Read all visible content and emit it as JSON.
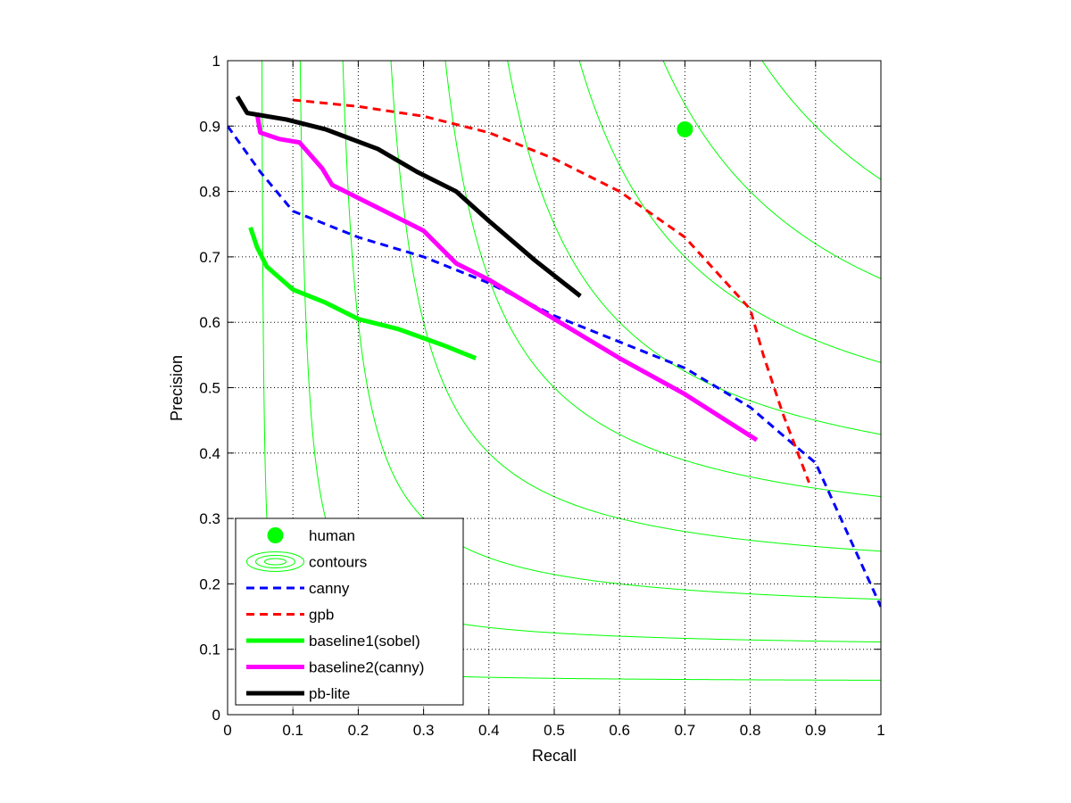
{
  "chart_data": {
    "type": "line",
    "title": "",
    "xlabel": "Recall",
    "ylabel": "Precision",
    "xlim": [
      0,
      1
    ],
    "ylim": [
      0,
      1
    ],
    "x_ticks": [
      "0",
      "0.1",
      "0.2",
      "0.3",
      "0.4",
      "0.5",
      "0.6",
      "0.7",
      "0.8",
      "0.9",
      "1"
    ],
    "y_ticks": [
      "0",
      "0.1",
      "0.2",
      "0.3",
      "0.4",
      "0.5",
      "0.6",
      "0.7",
      "0.8",
      "0.9",
      "1"
    ],
    "grid": "dotted",
    "legend_position": "bottom-left",
    "contours": {
      "label": "contours",
      "color": "#00ff00",
      "f_levels": [
        0.1,
        0.2,
        0.3,
        0.4,
        0.5,
        0.6,
        0.7,
        0.8,
        0.9
      ]
    },
    "points": [
      {
        "name": "human",
        "x": 0.7,
        "y": 0.895,
        "color": "#00ff00"
      }
    ],
    "series": [
      {
        "name": "canny",
        "color": "#0000ff",
        "style": "dashed",
        "width": "thin",
        "x": [
          0.0,
          0.05,
          0.1,
          0.2,
          0.3,
          0.4,
          0.5,
          0.6,
          0.7,
          0.8,
          0.87,
          0.9,
          1.0
        ],
        "y": [
          0.9,
          0.83,
          0.77,
          0.73,
          0.7,
          0.66,
          0.61,
          0.57,
          0.53,
          0.47,
          0.41,
          0.385,
          0.165
        ]
      },
      {
        "name": "gpb",
        "color": "#ff0000",
        "style": "dashed",
        "width": "thin",
        "x": [
          0.1,
          0.2,
          0.3,
          0.4,
          0.5,
          0.6,
          0.7,
          0.8,
          0.82,
          0.85,
          0.89
        ],
        "y": [
          0.94,
          0.93,
          0.915,
          0.89,
          0.85,
          0.8,
          0.73,
          0.62,
          0.55,
          0.46,
          0.355
        ]
      },
      {
        "name": "baseline1(sobel)",
        "color": "#00ff00",
        "style": "solid",
        "width": "thick",
        "x": [
          0.035,
          0.045,
          0.06,
          0.1,
          0.15,
          0.2,
          0.26,
          0.33,
          0.38
        ],
        "y": [
          0.745,
          0.715,
          0.685,
          0.65,
          0.63,
          0.605,
          0.59,
          0.565,
          0.545
        ]
      },
      {
        "name": "baseline2(canny)",
        "color": "#ff00ff",
        "style": "solid",
        "width": "thick",
        "x": [
          0.045,
          0.05,
          0.08,
          0.11,
          0.145,
          0.16,
          0.23,
          0.3,
          0.35,
          0.4,
          0.5,
          0.6,
          0.7,
          0.81
        ],
        "y": [
          0.92,
          0.89,
          0.88,
          0.875,
          0.835,
          0.81,
          0.775,
          0.74,
          0.69,
          0.665,
          0.605,
          0.545,
          0.49,
          0.42
        ]
      },
      {
        "name": "pb-lite",
        "color": "#000000",
        "style": "solid",
        "width": "thick",
        "x": [
          0.015,
          0.03,
          0.09,
          0.15,
          0.23,
          0.29,
          0.35,
          0.4,
          0.47,
          0.54
        ],
        "y": [
          0.945,
          0.92,
          0.91,
          0.895,
          0.865,
          0.83,
          0.8,
          0.755,
          0.695,
          0.64
        ]
      }
    ],
    "legend": [
      {
        "label": "human",
        "key": "human"
      },
      {
        "label": "contours",
        "key": "contours"
      },
      {
        "label": "canny",
        "key": "canny"
      },
      {
        "label": "gpb",
        "key": "gpb"
      },
      {
        "label": "baseline1(sobel)",
        "key": "baseline1(sobel)"
      },
      {
        "label": "baseline2(canny)",
        "key": "baseline2(canny)"
      },
      {
        "label": "pb-lite",
        "key": "pb-lite"
      }
    ]
  }
}
